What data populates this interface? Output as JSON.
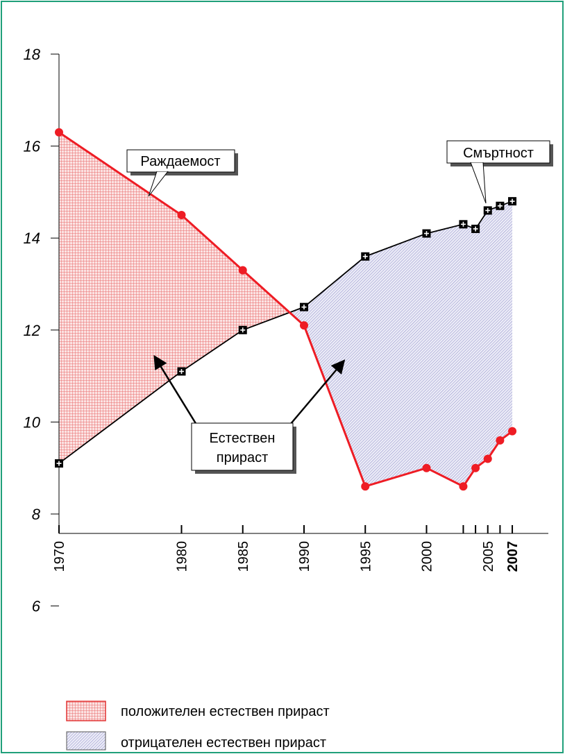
{
  "chart_data": {
    "type": "line",
    "x": [
      1970,
      1980,
      1985,
      1990,
      1995,
      2000,
      2003,
      2004,
      2005,
      2006,
      2007
    ],
    "series": [
      {
        "name": "Раждаемост",
        "color": "#ee1c24",
        "values": [
          16.3,
          14.5,
          13.3,
          12.1,
          8.6,
          9.0,
          8.6,
          9.0,
          9.2,
          9.6,
          9.8
        ]
      },
      {
        "name": "Смъртност",
        "color": "#000000",
        "values": [
          9.1,
          11.1,
          12.0,
          12.5,
          13.6,
          14.1,
          14.3,
          14.2,
          14.6,
          14.7,
          14.8
        ]
      }
    ],
    "ylim": [
      6,
      18
    ],
    "yticks": [
      {
        "value": 6,
        "label": "6"
      },
      {
        "value": 8,
        "label": "8"
      },
      {
        "value": 10,
        "label": "10"
      },
      {
        "value": 12,
        "label": "12"
      },
      {
        "value": 14,
        "label": "14"
      },
      {
        "value": 16,
        "label": "16"
      },
      {
        "value": 18,
        "label": "18"
      }
    ],
    "xticks": [
      1970,
      1980,
      1985,
      1990,
      1995,
      2000,
      2003,
      2004,
      2005,
      2006,
      2007
    ],
    "xtick_labels": [
      {
        "value": 1970,
        "label": "1970",
        "bold": false
      },
      {
        "value": 1980,
        "label": "1980",
        "bold": false
      },
      {
        "value": 1985,
        "label": "1985",
        "bold": false
      },
      {
        "value": 1990,
        "label": "1990",
        "bold": false
      },
      {
        "value": 1995,
        "label": "1995",
        "bold": false
      },
      {
        "value": 2000,
        "label": "2000",
        "bold": false
      },
      {
        "value": 2005,
        "label": "2005",
        "bold": false
      },
      {
        "value": 2007,
        "label": "2007",
        "bold": true
      }
    ],
    "annotations": {
      "birth": "Раждаемост",
      "death": "Смъртност",
      "natural_line1": "Естествен",
      "natural_line2": "прираст"
    },
    "legend": [
      {
        "label": "положителен естествен прираст",
        "fill": "#f08a8a"
      },
      {
        "label": "отрицателен естествен прираст",
        "fill": "#b4b4de"
      }
    ]
  }
}
